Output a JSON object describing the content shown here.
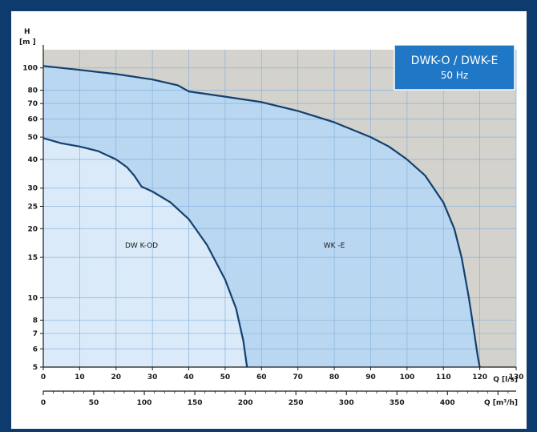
{
  "chart_data": {
    "type": "area",
    "title": "DWK-O / DWK-E",
    "subtitle": "50 Hz",
    "ylabel_top": "H",
    "ylabel_unit": "[m ]",
    "xlabel_ls": "Q  [l/s]",
    "xlabel_m3h": "Q  [m³/h]",
    "y_scale": "log",
    "ylim": [
      5,
      120
    ],
    "xlim": [
      0,
      130
    ],
    "x2lim": [
      0,
      468
    ],
    "grid": true,
    "y_ticks": [
      5,
      6,
      7,
      8,
      10,
      15,
      20,
      25,
      30,
      40,
      50,
      60,
      70,
      80,
      100
    ],
    "x_ticks": [
      0,
      10,
      20,
      30,
      40,
      50,
      60,
      70,
      80,
      90,
      100,
      110,
      120,
      130
    ],
    "x2_ticks": [
      0,
      50,
      100,
      150,
      200,
      250,
      300,
      350,
      400
    ],
    "series": [
      {
        "name": "WK -E",
        "color": "#b9d7f0",
        "values": [
          [
            0,
            102
          ],
          [
            10,
            98
          ],
          [
            20,
            94
          ],
          [
            30,
            89
          ],
          [
            37,
            84
          ],
          [
            40,
            79
          ],
          [
            50,
            75
          ],
          [
            60,
            71
          ],
          [
            70,
            65
          ],
          [
            80,
            58
          ],
          [
            90,
            50
          ],
          [
            95,
            45.5
          ],
          [
            100,
            40
          ],
          [
            105,
            34
          ],
          [
            110,
            26
          ],
          [
            113,
            20
          ],
          [
            115,
            15
          ],
          [
            117,
            10
          ],
          [
            118.5,
            7
          ],
          [
            119.5,
            5.5
          ],
          [
            120,
            5
          ]
        ]
      },
      {
        "name": "DW K-OD",
        "color": "#dbeaf8",
        "values": [
          [
            0,
            49.5
          ],
          [
            5,
            47
          ],
          [
            10,
            45.5
          ],
          [
            15,
            43.5
          ],
          [
            20,
            40
          ],
          [
            23,
            37
          ],
          [
            25,
            34
          ],
          [
            27,
            30.5
          ],
          [
            30,
            29
          ],
          [
            35,
            26
          ],
          [
            40,
            22
          ],
          [
            45,
            17
          ],
          [
            50,
            12
          ],
          [
            53,
            9
          ],
          [
            55,
            6.5
          ],
          [
            56,
            5
          ]
        ]
      }
    ]
  },
  "colors": {
    "frame": "#0d3b6e",
    "chart_background": "#d4d2cc",
    "title_box": "#1f77c6",
    "curve": "#13406f",
    "grid": "#88b3de"
  }
}
